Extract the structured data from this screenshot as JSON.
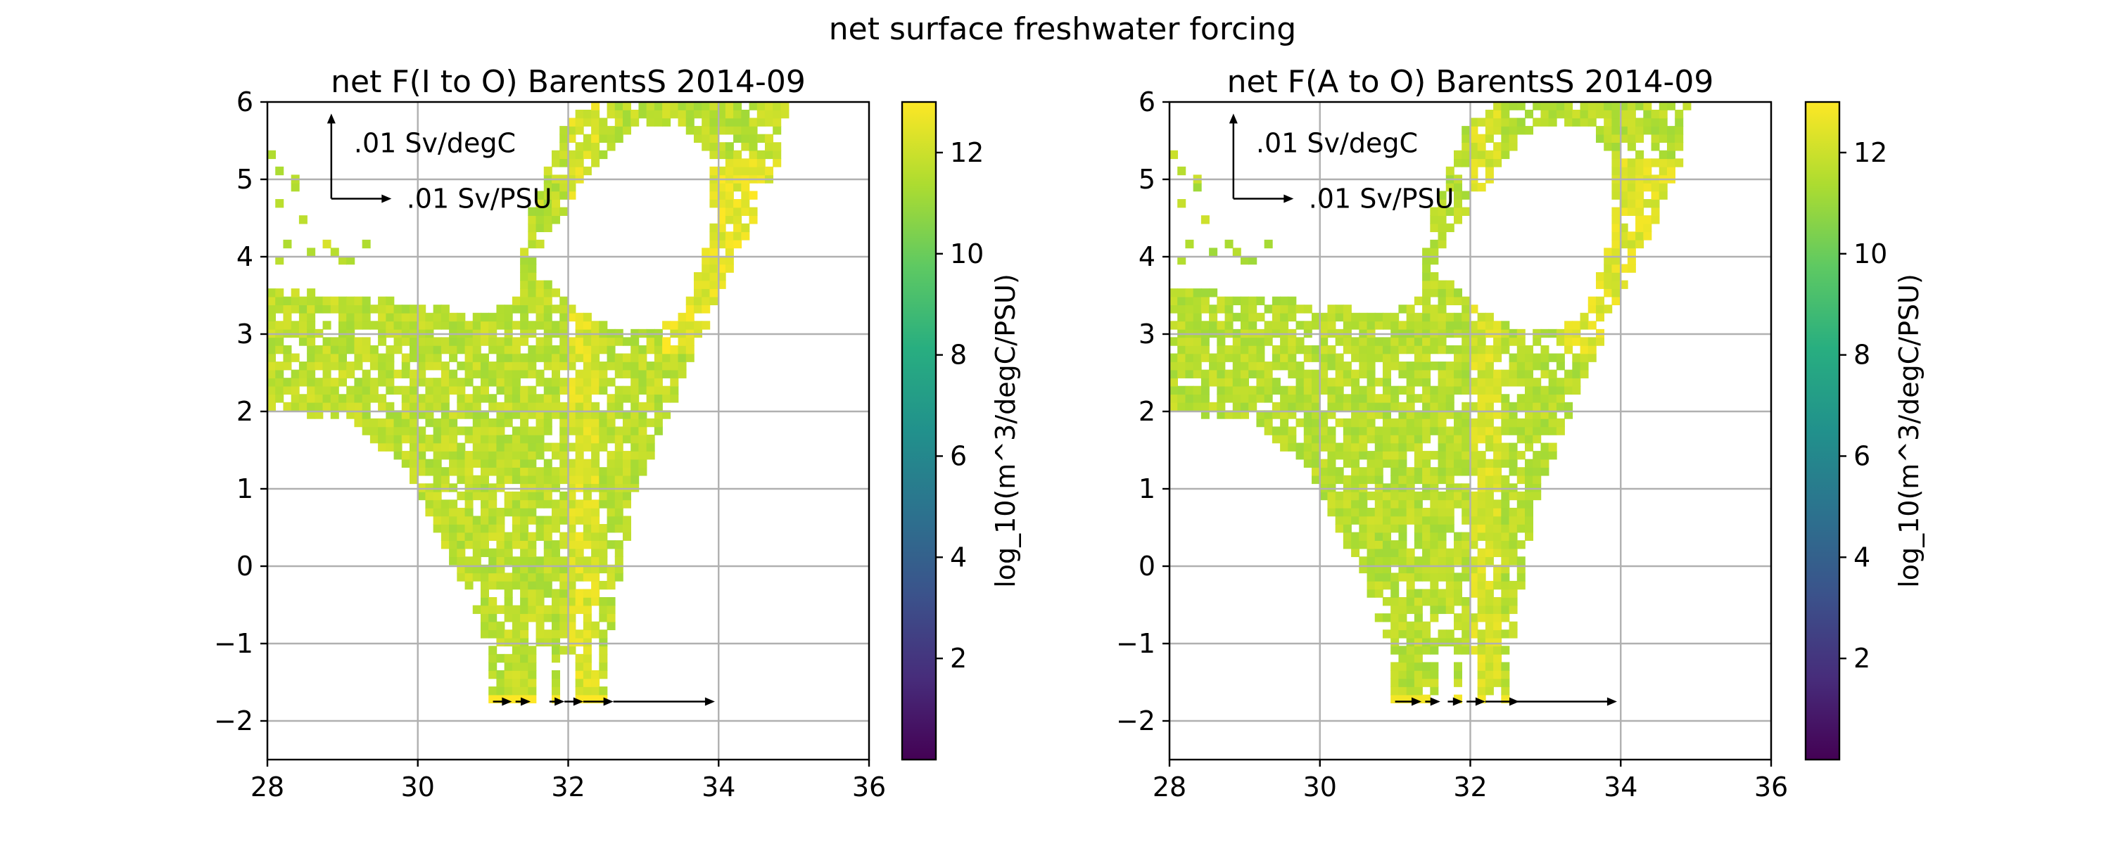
{
  "figure": {
    "suptitle": "net surface freshwater forcing"
  },
  "chart_data": [
    {
      "type": "heatmap",
      "title": "net F(I to O) BarentsS 2014-09",
      "xlabel": "",
      "ylabel": "",
      "xlim": [
        28,
        36
      ],
      "ylim": [
        -2.5,
        6
      ],
      "xticks": [
        28,
        30,
        32,
        34,
        36
      ],
      "yticks": [
        -2,
        -1,
        0,
        1,
        2,
        3,
        4,
        5,
        6
      ],
      "xtick_labels": [
        "28",
        "30",
        "32",
        "34",
        "36"
      ],
      "ytick_labels": [
        "−2",
        "−1",
        "0",
        "1",
        "2",
        "3",
        "4",
        "5",
        "6"
      ],
      "grid": true,
      "colormap": "viridis",
      "colorbar": {
        "label": "log_10(m^3/degC/PSU)",
        "range": [
          0,
          13
        ],
        "ticks": [
          2,
          4,
          6,
          8,
          10,
          12
        ],
        "tick_labels": [
          "2",
          "4",
          "6",
          "8",
          "10",
          "12"
        ]
      },
      "scale_arrows": {
        "vertical_label": ".01 Sv/degC",
        "horizontal_label": ".01 Sv/PSU"
      },
      "cell_value_range": [
        10.5,
        13
      ],
      "flux_arrows": [
        {
          "x0": 31.0,
          "y": -1.75,
          "dx": 0.25
        },
        {
          "x0": 31.3,
          "y": -1.75,
          "dx": 0.2
        },
        {
          "x0": 31.75,
          "y": -1.75,
          "dx": 0.2
        },
        {
          "x0": 31.95,
          "y": -1.75,
          "dx": 0.25
        },
        {
          "x0": 32.2,
          "y": -1.75,
          "dx": 0.4
        },
        {
          "x0": 32.6,
          "y": -1.75,
          "dx": 1.35
        }
      ]
    },
    {
      "type": "heatmap",
      "title": "net F(A to O) BarentsS 2014-09",
      "xlabel": "",
      "ylabel": "",
      "xlim": [
        28,
        36
      ],
      "ylim": [
        -2.5,
        6
      ],
      "xticks": [
        28,
        30,
        32,
        34,
        36
      ],
      "yticks": [
        -2,
        -1,
        0,
        1,
        2,
        3,
        4,
        5,
        6
      ],
      "xtick_labels": [
        "28",
        "30",
        "32",
        "34",
        "36"
      ],
      "ytick_labels": [
        "−2",
        "−1",
        "0",
        "1",
        "2",
        "3",
        "4",
        "5",
        "6"
      ],
      "grid": true,
      "colormap": "viridis",
      "colorbar": {
        "label": "log_10(m^3/degC/PSU)",
        "range": [
          0,
          13
        ],
        "ticks": [
          2,
          4,
          6,
          8,
          10,
          12
        ],
        "tick_labels": [
          "2",
          "4",
          "6",
          "8",
          "10",
          "12"
        ]
      },
      "scale_arrows": {
        "vertical_label": ".01 Sv/degC",
        "horizontal_label": ".01 Sv/PSU"
      },
      "cell_value_range": [
        10.5,
        12.8
      ],
      "flux_arrows": [
        {
          "x0": 31.0,
          "y": -1.75,
          "dx": 0.35
        },
        {
          "x0": 31.4,
          "y": -1.75,
          "dx": 0.2
        },
        {
          "x0": 31.7,
          "y": -1.75,
          "dx": 0.2
        },
        {
          "x0": 31.95,
          "y": -1.75,
          "dx": 0.25
        },
        {
          "x0": 32.2,
          "y": -1.75,
          "dx": 0.45
        },
        {
          "x0": 32.6,
          "y": -1.75,
          "dx": 1.35
        }
      ]
    }
  ]
}
